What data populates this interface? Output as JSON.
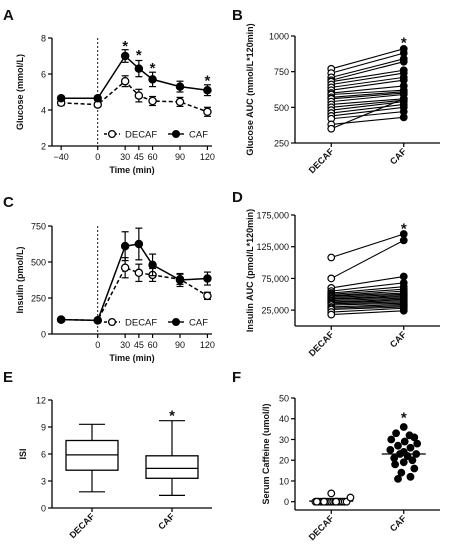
{
  "chart_data": [
    {
      "panel": "A",
      "type": "line",
      "xlabel": "Time (min)",
      "ylabel": "Glucose (mmol/L)",
      "xlim": [
        -50,
        125
      ],
      "ylim": [
        2,
        8
      ],
      "xticks": [
        -40,
        0,
        30,
        45,
        60,
        90,
        120
      ],
      "yticks": [
        2,
        4,
        6,
        8
      ],
      "legend": "bottom",
      "vline_x": 0,
      "series": [
        {
          "name": "DECAF",
          "marker": "open",
          "dash": true,
          "x": [
            -40,
            0,
            30,
            45,
            60,
            90,
            120
          ],
          "y": [
            4.4,
            4.3,
            5.6,
            4.8,
            4.5,
            4.45,
            3.9
          ],
          "err": [
            0.15,
            0.12,
            0.3,
            0.35,
            0.25,
            0.25,
            0.25
          ]
        },
        {
          "name": "CAF",
          "marker": "filled",
          "dash": false,
          "x": [
            -40,
            0,
            30,
            45,
            60,
            90,
            120
          ],
          "y": [
            4.65,
            4.65,
            7.0,
            6.3,
            5.7,
            5.3,
            5.1
          ],
          "err": [
            0.12,
            0.12,
            0.35,
            0.45,
            0.4,
            0.3,
            0.3
          ]
        }
      ],
      "significance": [
        {
          "x": 30,
          "y": 7.6
        },
        {
          "x": 45,
          "y": 7.1
        },
        {
          "x": 60,
          "y": 6.4
        },
        {
          "x": 120,
          "y": 5.7
        }
      ]
    },
    {
      "panel": "B",
      "type": "scatter",
      "categories": [
        "DECAF",
        "CAF"
      ],
      "ylabel": "Glucose AUC (mmol/L*120min)",
      "ylim": [
        250,
        1000
      ],
      "yticks": [
        250,
        500,
        750,
        1000
      ],
      "paired": [
        [
          770,
          910
        ],
        [
          740,
          880
        ],
        [
          710,
          840
        ],
        [
          690,
          820
        ],
        [
          680,
          760
        ],
        [
          660,
          740
        ],
        [
          640,
          710
        ],
        [
          620,
          690
        ],
        [
          600,
          650
        ],
        [
          590,
          620
        ],
        [
          570,
          610
        ],
        [
          560,
          600
        ],
        [
          540,
          590
        ],
        [
          520,
          560
        ],
        [
          500,
          550
        ],
        [
          480,
          540
        ],
        [
          460,
          520
        ],
        [
          440,
          500
        ],
        [
          420,
          470
        ],
        [
          380,
          430
        ],
        [
          350,
          560
        ]
      ],
      "significance": [
        {
          "category": "CAF",
          "y": 960
        }
      ]
    },
    {
      "panel": "C",
      "type": "line",
      "xlabel": "Time (min)",
      "ylabel": "Insulin (pmol/L)",
      "xlim": [
        -50,
        125
      ],
      "ylim": [
        0,
        750
      ],
      "xticks": [
        0,
        30,
        45,
        60,
        90,
        120
      ],
      "yticks": [
        0,
        250,
        500,
        750
      ],
      "legend": "bottom",
      "vline_x": 0,
      "series": [
        {
          "name": "DECAF",
          "marker": "open",
          "dash": true,
          "x": [
            -40,
            0,
            30,
            45,
            60,
            90,
            120
          ],
          "y": [
            100,
            95,
            460,
            425,
            410,
            380,
            265
          ],
          "err": [
            10,
            10,
            70,
            60,
            45,
            35,
            25
          ]
        },
        {
          "name": "CAF",
          "marker": "filled",
          "dash": false,
          "x": [
            -40,
            0,
            30,
            45,
            60,
            90,
            120
          ],
          "y": [
            100,
            95,
            610,
            625,
            480,
            375,
            385
          ],
          "err": [
            10,
            10,
            100,
            110,
            75,
            45,
            45
          ]
        }
      ]
    },
    {
      "panel": "D",
      "type": "scatter",
      "categories": [
        "DECAF",
        "CAF"
      ],
      "ylabel": "Insulin AUC (pmol/L*120min)",
      "ylim": [
        0,
        175000
      ],
      "yticks": [
        25000,
        75000,
        125000,
        175000
      ],
      "ytick_labels": [
        "25,000",
        "75,000",
        "125,000",
        "175,000"
      ],
      "paired": [
        [
          108000,
          145000
        ],
        [
          75000,
          135000
        ],
        [
          60000,
          78000
        ],
        [
          55000,
          68000
        ],
        [
          52000,
          62000
        ],
        [
          50000,
          58000
        ],
        [
          48000,
          55000
        ],
        [
          47000,
          52000
        ],
        [
          45000,
          50000
        ],
        [
          43000,
          48000
        ],
        [
          42000,
          46000
        ],
        [
          40000,
          44000
        ],
        [
          38000,
          42000
        ],
        [
          37000,
          40000
        ],
        [
          35000,
          38000
        ],
        [
          33000,
          36000
        ],
        [
          30000,
          34000
        ],
        [
          28000,
          32000
        ],
        [
          26000,
          30000
        ],
        [
          22000,
          28000
        ],
        [
          18000,
          24000
        ]
      ],
      "significance": [
        {
          "category": "CAF",
          "y": 155000
        }
      ]
    },
    {
      "panel": "E",
      "type": "box",
      "categories": [
        "DECAF",
        "CAF"
      ],
      "ylabel": "ISI",
      "ylim": [
        0,
        12
      ],
      "yticks": [
        0,
        3,
        6,
        9,
        12
      ],
      "boxes": [
        {
          "min": 1.8,
          "q1": 4.2,
          "median": 5.9,
          "q3": 7.5,
          "max": 9.3
        },
        {
          "min": 1.4,
          "q1": 3.3,
          "median": 4.4,
          "q3": 5.8,
          "max": 9.7
        }
      ],
      "significance": [
        {
          "category": "CAF",
          "y": 10.4
        }
      ]
    },
    {
      "panel": "F",
      "type": "scatter",
      "categories": [
        "DECAF",
        "CAF"
      ],
      "ylabel": "Serum Caffeine (umol/l)",
      "ylim": [
        -4,
        50
      ],
      "yticks": [
        0,
        10,
        20,
        30,
        40,
        50
      ],
      "groups": [
        {
          "marker": "open",
          "values": [
            0,
            0,
            0,
            0,
            0,
            0,
            0,
            0,
            0,
            0,
            0,
            0,
            0,
            0,
            0,
            0,
            0,
            0,
            0,
            4,
            2
          ],
          "offsets": [
            -0.33,
            -0.27,
            -0.22,
            -0.17,
            -0.12,
            -0.08,
            -0.04,
            0,
            0.04,
            0.08,
            0.12,
            0.16,
            0.2,
            0.24,
            -0.3,
            -0.15,
            0.1,
            0.28,
            0.32,
            0,
            0.4
          ],
          "mean": 0.3
        },
        {
          "marker": "filled",
          "values": [
            36,
            33,
            32,
            31,
            30,
            29,
            28,
            27,
            26,
            25,
            24,
            23,
            23,
            22,
            21,
            20,
            19,
            18,
            16,
            14,
            12,
            11
          ],
          "offsets": [
            0,
            -0.16,
            0.12,
            0.22,
            -0.26,
            0.02,
            0.28,
            -0.12,
            0.14,
            -0.28,
            0,
            0.26,
            -0.08,
            0.08,
            -0.2,
            0.18,
            0,
            -0.18,
            0.22,
            -0.05,
            0.14,
            -0.12
          ],
          "mean": 23
        }
      ],
      "significance": [
        {
          "category": "CAF",
          "y": 41
        }
      ]
    }
  ],
  "panel_letters": [
    "A",
    "B",
    "C",
    "D",
    "E",
    "F"
  ],
  "legend": {
    "decaf": "DECAF",
    "caf": "CAF"
  },
  "star": "*"
}
